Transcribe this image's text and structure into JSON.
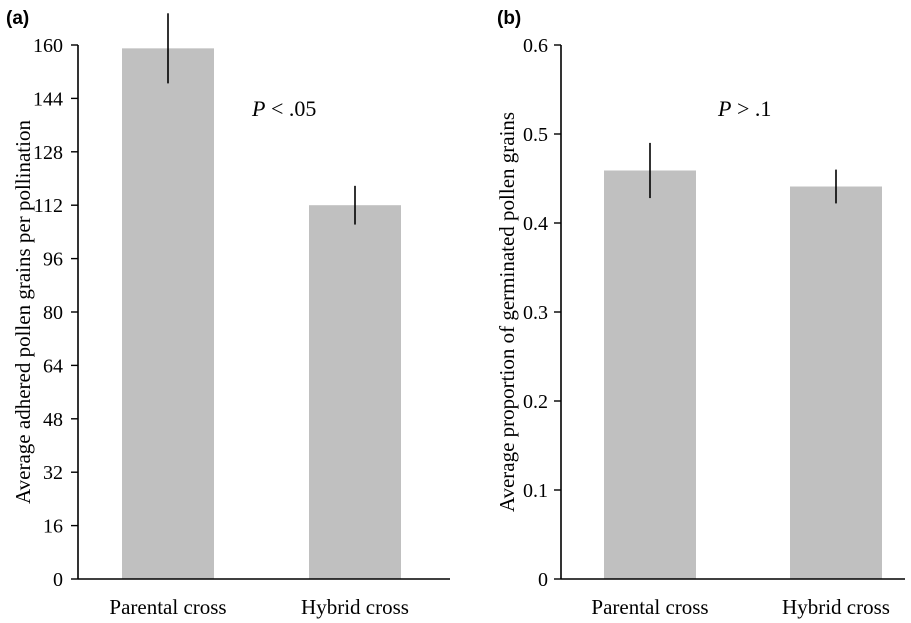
{
  "chart_data": [
    {
      "panel": "(a)",
      "type": "bar",
      "categories": [
        "Parental cross",
        "Hybrid cross"
      ],
      "values": [
        159,
        112
      ],
      "error": [
        10.5,
        5.8
      ],
      "ylabel": "Average  adhered pollen  grains per pollination",
      "ylim": [
        0,
        160
      ],
      "yticks": [
        "0",
        "16",
        "32",
        "48",
        "64",
        "80",
        "96",
        "112",
        "128",
        "144",
        "160"
      ],
      "annotation_italic": "P",
      "annotation_rest": " < .05",
      "bar_color": "#c0c0c0",
      "grid": false
    },
    {
      "panel": "(b)",
      "type": "bar",
      "categories": [
        "Parental cross",
        "Hybrid cross"
      ],
      "values": [
        0.459,
        0.441
      ],
      "error": [
        0.031,
        0.019
      ],
      "ylabel": "Average proportion of  germinated pollen  grains",
      "ylim": [
        0,
        0.6
      ],
      "yticks": [
        "0",
        "0.1",
        "0.2",
        "0.3",
        "0.4",
        "0.5",
        "0.6"
      ],
      "annotation_italic": "P",
      "annotation_rest": " > .1",
      "bar_color": "#c0c0c0",
      "grid": false
    }
  ]
}
